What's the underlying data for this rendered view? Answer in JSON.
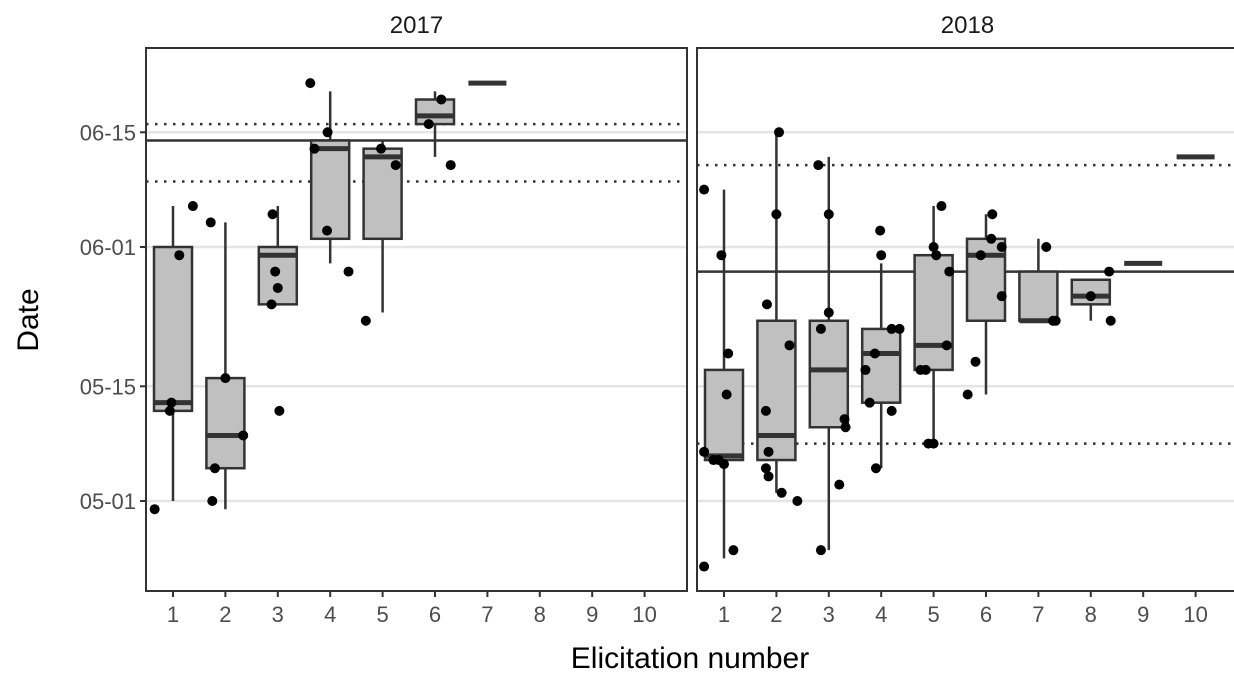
{
  "chart_data": {
    "type": "box",
    "xlabel": "Elicitation number",
    "ylabel": "Date",
    "x_ticks": [
      "1",
      "2",
      "3",
      "4",
      "5",
      "6",
      "7",
      "8",
      "9",
      "10"
    ],
    "y_ticks": [
      "05-01",
      "05-15",
      "06-01",
      "06-15"
    ],
    "y_tick_days": [
      0,
      14,
      31,
      45
    ],
    "ylim_days": [
      -10,
      52
    ],
    "grid": "horizontal major",
    "colors": {
      "box_fill": "#c0c0c0",
      "box_line": "#333333",
      "point": "#000000",
      "panel_border": "#333333",
      "grid": "#e5e5e5"
    },
    "panels": [
      {
        "label": "2017",
        "hline_solid": 44,
        "hline_dotted": [
          46,
          39
        ],
        "boxes": [
          {
            "x": 1,
            "q1": 11,
            "median": 12,
            "q3": 31,
            "wmin": 0,
            "wmax": 36
          },
          {
            "x": 2,
            "q1": 4,
            "median": 8,
            "q3": 15,
            "wmin": -1,
            "wmax": 34
          },
          {
            "x": 3,
            "q1": 24,
            "median": 30,
            "q3": 31,
            "wmin": 24,
            "wmax": 36
          },
          {
            "x": 4,
            "q1": 32,
            "median": 43,
            "q3": 44,
            "wmin": 29,
            "wmax": 50
          },
          {
            "x": 5,
            "q1": 32,
            "median": 42,
            "q3": 43,
            "wmin": 23,
            "wmax": 44
          },
          {
            "x": 6,
            "q1": 46,
            "median": 47,
            "q3": 49,
            "wmin": 42,
            "wmax": 50
          },
          {
            "x": 7,
            "q1": 51,
            "median": 51,
            "q3": 51,
            "wmin": 51,
            "wmax": 51
          }
        ],
        "points": [
          {
            "x": 1,
            "dx": -0.35,
            "y": -1
          },
          {
            "x": 1,
            "dx": -0.06,
            "y": 11
          },
          {
            "x": 1,
            "dx": -0.03,
            "y": 12
          },
          {
            "x": 1,
            "dx": 0.12,
            "y": 30
          },
          {
            "x": 1,
            "dx": 0.38,
            "y": 36
          },
          {
            "x": 2,
            "dx": -0.25,
            "y": 0
          },
          {
            "x": 2,
            "dx": -0.2,
            "y": 4
          },
          {
            "x": 2,
            "dx": -0.28,
            "y": 34
          },
          {
            "x": 2,
            "dx": 0.0,
            "y": 15
          },
          {
            "x": 2,
            "dx": 0.34,
            "y": 8
          },
          {
            "x": 3,
            "dx": -0.12,
            "y": 24
          },
          {
            "x": 3,
            "dx": -0.1,
            "y": 35
          },
          {
            "x": 3,
            "dx": -0.05,
            "y": 28
          },
          {
            "x": 3,
            "dx": 0.0,
            "y": 26
          },
          {
            "x": 3,
            "dx": 0.03,
            "y": 11
          },
          {
            "x": 4,
            "dx": -0.38,
            "y": 51
          },
          {
            "x": 4,
            "dx": -0.3,
            "y": 43
          },
          {
            "x": 4,
            "dx": -0.05,
            "y": 45
          },
          {
            "x": 4,
            "dx": -0.06,
            "y": 33
          },
          {
            "x": 4,
            "dx": 0.35,
            "y": 28
          },
          {
            "x": 5,
            "dx": -0.32,
            "y": 22
          },
          {
            "x": 5,
            "dx": -0.03,
            "y": 43
          },
          {
            "x": 5,
            "dx": 0.25,
            "y": 41
          },
          {
            "x": 6,
            "dx": -0.12,
            "y": 46
          },
          {
            "x": 6,
            "dx": 0.12,
            "y": 49
          },
          {
            "x": 6,
            "dx": 0.3,
            "y": 41
          }
        ]
      },
      {
        "label": "2018",
        "hline_solid": 28,
        "hline_dotted": [
          41,
          7
        ],
        "boxes": [
          {
            "x": 1,
            "q1": 5,
            "median": 5.5,
            "q3": 16,
            "wmin": -7,
            "wmax": 38
          },
          {
            "x": 2,
            "q1": 5,
            "median": 8,
            "q3": 22,
            "wmin": 1,
            "wmax": 45
          },
          {
            "x": 3,
            "q1": 9,
            "median": 16,
            "q3": 22,
            "wmin": -6,
            "wmax": 42
          },
          {
            "x": 4,
            "q1": 12,
            "median": 18,
            "q3": 21,
            "wmin": 4,
            "wmax": 29
          },
          {
            "x": 5,
            "q1": 16,
            "median": 19,
            "q3": 30,
            "wmin": 7,
            "wmax": 36
          },
          {
            "x": 6,
            "q1": 22,
            "median": 30,
            "q3": 32,
            "wmin": 13,
            "wmax": 35
          },
          {
            "x": 7,
            "q1": 22,
            "median": 22,
            "q3": 28,
            "wmin": 22,
            "wmax": 32
          },
          {
            "x": 8,
            "q1": 24,
            "median": 25,
            "q3": 27,
            "wmin": 22,
            "wmax": 27
          },
          {
            "x": 9,
            "q1": 29,
            "median": 29,
            "q3": 29,
            "wmin": 29,
            "wmax": 29
          },
          {
            "x": 10,
            "q1": 42,
            "median": 42,
            "q3": 42,
            "wmin": 42,
            "wmax": 42
          }
        ],
        "points": [
          {
            "x": 1,
            "dx": -0.38,
            "y": -8
          },
          {
            "x": 1,
            "dx": -0.38,
            "y": 6
          },
          {
            "x": 1,
            "dx": -0.38,
            "y": 38
          },
          {
            "x": 1,
            "dx": -0.2,
            "y": 5
          },
          {
            "x": 1,
            "dx": -0.1,
            "y": 5
          },
          {
            "x": 1,
            "dx": 0.0,
            "y": 4.5
          },
          {
            "x": 1,
            "dx": 0.05,
            "y": 13
          },
          {
            "x": 1,
            "dx": 0.08,
            "y": 18
          },
          {
            "x": 1,
            "dx": 0.18,
            "y": -6
          },
          {
            "x": 1,
            "dx": -0.05,
            "y": 30
          },
          {
            "x": 2,
            "dx": -0.18,
            "y": 24
          },
          {
            "x": 2,
            "dx": -0.2,
            "y": 11
          },
          {
            "x": 2,
            "dx": -0.15,
            "y": 6
          },
          {
            "x": 2,
            "dx": -0.2,
            "y": 4
          },
          {
            "x": 2,
            "dx": -0.15,
            "y": 3
          },
          {
            "x": 2,
            "dx": 0.0,
            "y": 35
          },
          {
            "x": 2,
            "dx": 0.05,
            "y": 45
          },
          {
            "x": 2,
            "dx": 0.25,
            "y": 19
          },
          {
            "x": 2,
            "dx": 0.1,
            "y": 1
          },
          {
            "x": 2,
            "dx": 0.4,
            "y": 0
          },
          {
            "x": 3,
            "dx": -0.2,
            "y": 41
          },
          {
            "x": 3,
            "dx": -0.15,
            "y": 21
          },
          {
            "x": 3,
            "dx": 0.0,
            "y": 35
          },
          {
            "x": 3,
            "dx": 0.0,
            "y": 23
          },
          {
            "x": 3,
            "dx": 0.3,
            "y": 10
          },
          {
            "x": 3,
            "dx": 0.32,
            "y": 9
          },
          {
            "x": 3,
            "dx": 0.2,
            "y": 2
          },
          {
            "x": 3,
            "dx": -0.15,
            "y": -6
          },
          {
            "x": 4,
            "dx": -0.3,
            "y": 16
          },
          {
            "x": 4,
            "dx": -0.22,
            "y": 12
          },
          {
            "x": 4,
            "dx": -0.12,
            "y": 18
          },
          {
            "x": 4,
            "dx": -0.02,
            "y": 33
          },
          {
            "x": 4,
            "dx": 0.0,
            "y": 30
          },
          {
            "x": 4,
            "dx": 0.2,
            "y": 21
          },
          {
            "x": 4,
            "dx": 0.35,
            "y": 21
          },
          {
            "x": 4,
            "dx": 0.2,
            "y": 11
          },
          {
            "x": 4,
            "dx": -0.1,
            "y": 4
          },
          {
            "x": 5,
            "dx": -0.25,
            "y": 16
          },
          {
            "x": 5,
            "dx": -0.15,
            "y": 16
          },
          {
            "x": 5,
            "dx": 0.0,
            "y": 31
          },
          {
            "x": 5,
            "dx": 0.05,
            "y": 30
          },
          {
            "x": 5,
            "dx": 0.15,
            "y": 36
          },
          {
            "x": 5,
            "dx": 0.3,
            "y": 28
          },
          {
            "x": 5,
            "dx": 0.25,
            "y": 19
          },
          {
            "x": 5,
            "dx": -0.1,
            "y": 7
          },
          {
            "x": 5,
            "dx": 0.0,
            "y": 7
          },
          {
            "x": 6,
            "dx": -0.35,
            "y": 13
          },
          {
            "x": 6,
            "dx": -0.2,
            "y": 17
          },
          {
            "x": 6,
            "dx": -0.1,
            "y": 30
          },
          {
            "x": 6,
            "dx": 0.1,
            "y": 32
          },
          {
            "x": 6,
            "dx": 0.12,
            "y": 35
          },
          {
            "x": 6,
            "dx": 0.3,
            "y": 31
          },
          {
            "x": 6,
            "dx": 0.3,
            "y": 25
          },
          {
            "x": 7,
            "dx": 0.15,
            "y": 31
          },
          {
            "x": 7,
            "dx": 0.28,
            "y": 22
          },
          {
            "x": 7,
            "dx": 0.33,
            "y": 22
          },
          {
            "x": 8,
            "dx": 0.0,
            "y": 25
          },
          {
            "x": 8,
            "dx": 0.35,
            "y": 28
          },
          {
            "x": 8,
            "dx": 0.38,
            "y": 22
          }
        ]
      }
    ]
  }
}
